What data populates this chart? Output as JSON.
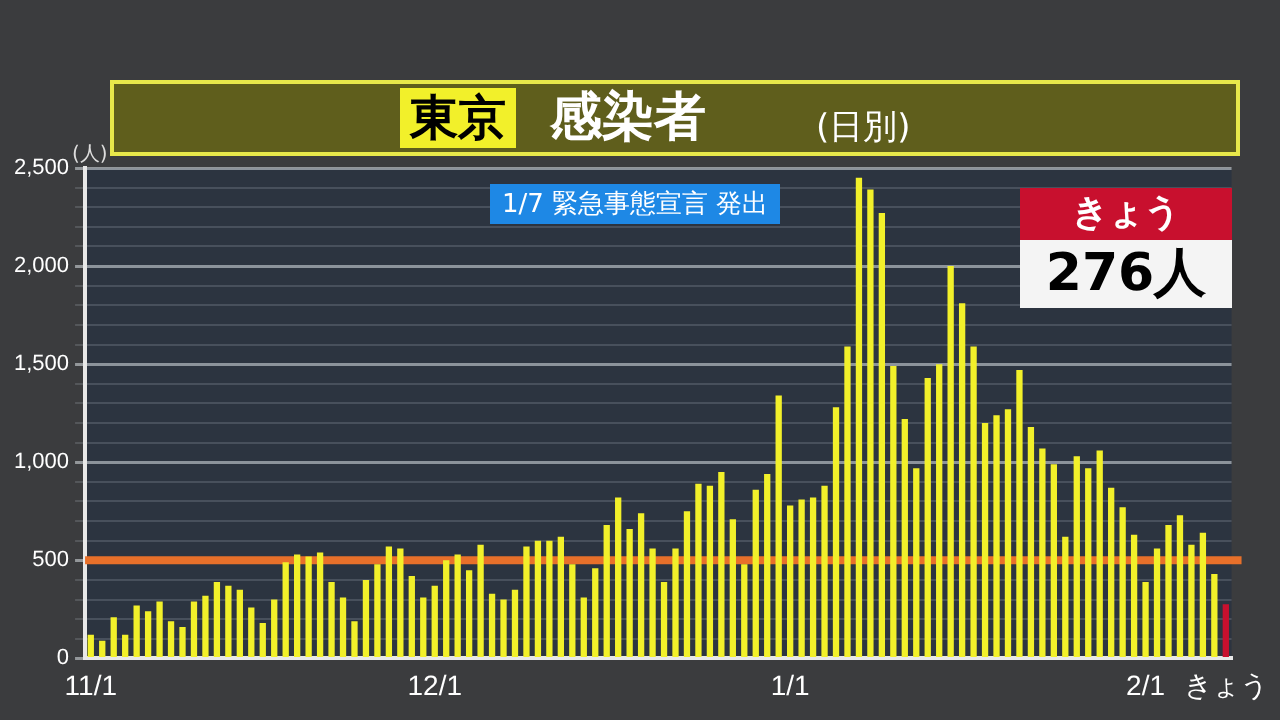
{
  "chart_data": {
    "type": "bar",
    "title": "東京",
    "subtitle": "感染者",
    "ylabel": "(人)",
    "annotations": [
      "1/7 緊急事態宣言 発出",
      "きょう",
      "276人",
      "(日別)"
    ],
    "categories": [
      "11/1",
      null,
      null,
      null,
      null,
      null,
      null,
      null,
      null,
      null,
      null,
      null,
      null,
      null,
      null,
      null,
      null,
      null,
      null,
      null,
      null,
      null,
      null,
      null,
      null,
      null,
      null,
      null,
      null,
      null,
      "12/1",
      null,
      null,
      null,
      null,
      null,
      null,
      null,
      null,
      null,
      null,
      null,
      null,
      null,
      null,
      null,
      null,
      null,
      null,
      null,
      null,
      null,
      null,
      null,
      null,
      null,
      null,
      null,
      null,
      null,
      null,
      "1/1",
      null,
      null,
      null,
      null,
      null,
      null,
      null,
      null,
      null,
      null,
      null,
      null,
      null,
      null,
      null,
      null,
      null,
      null,
      null,
      null,
      null,
      null,
      null,
      null,
      null,
      null,
      null,
      null,
      null,
      null,
      "2/1",
      null,
      null,
      null,
      null,
      null,
      null,
      "きょう"
    ],
    "values": [
      120,
      90,
      210,
      120,
      270,
      240,
      290,
      190,
      160,
      290,
      320,
      390,
      370,
      350,
      260,
      180,
      300,
      490,
      530,
      520,
      540,
      390,
      310,
      190,
      400,
      480,
      570,
      560,
      420,
      310,
      370,
      500,
      530,
      450,
      580,
      330,
      300,
      350,
      570,
      600,
      600,
      620,
      480,
      310,
      460,
      680,
      820,
      660,
      740,
      560,
      390,
      560,
      750,
      890,
      880,
      950,
      710,
      480,
      860,
      940,
      1340,
      780,
      810,
      820,
      880,
      1280,
      1590,
      2450,
      2390,
      2270,
      1490,
      1220,
      970,
      1430,
      1500,
      2000,
      1810,
      1590,
      1200,
      1240,
      1270,
      1470,
      1180,
      1070,
      990,
      620,
      1030,
      970,
      1060,
      870,
      770,
      630,
      390,
      560,
      680,
      730,
      580,
      640,
      430,
      276
    ],
    "colors": [
      "#f2f02a",
      "#f2f02a",
      "#f2f02a",
      "#f2f02a",
      "#f2f02a",
      "#f2f02a",
      "#f2f02a",
      "#f2f02a",
      "#f2f02a",
      "#f2f02a",
      "#f2f02a",
      "#f2f02a",
      "#f2f02a",
      "#f2f02a",
      "#f2f02a",
      "#f2f02a",
      "#f2f02a",
      "#f2f02a",
      "#f2f02a",
      "#f2f02a",
      "#f2f02a",
      "#f2f02a",
      "#f2f02a",
      "#f2f02a",
      "#f2f02a",
      "#f2f02a",
      "#f2f02a",
      "#f2f02a",
      "#f2f02a",
      "#f2f02a",
      "#f2f02a",
      "#f2f02a",
      "#f2f02a",
      "#f2f02a",
      "#f2f02a",
      "#f2f02a",
      "#f2f02a",
      "#f2f02a",
      "#f2f02a",
      "#f2f02a",
      "#f2f02a",
      "#f2f02a",
      "#f2f02a",
      "#f2f02a",
      "#f2f02a",
      "#f2f02a",
      "#f2f02a",
      "#f2f02a",
      "#f2f02a",
      "#f2f02a",
      "#f2f02a",
      "#f2f02a",
      "#f2f02a",
      "#f2f02a",
      "#f2f02a",
      "#f2f02a",
      "#f2f02a",
      "#f2f02a",
      "#f2f02a",
      "#f2f02a",
      "#f2f02a",
      "#f2f02a",
      "#f2f02a",
      "#f2f02a",
      "#f2f02a",
      "#f2f02a",
      "#f2f02a",
      "#f2f02a",
      "#f2f02a",
      "#f2f02a",
      "#f2f02a",
      "#f2f02a",
      "#f2f02a",
      "#f2f02a",
      "#f2f02a",
      "#f2f02a",
      "#f2f02a",
      "#f2f02a",
      "#f2f02a",
      "#f2f02a",
      "#f2f02a",
      "#f2f02a",
      "#f2f02a",
      "#f2f02a",
      "#f2f02a",
      "#f2f02a",
      "#f2f02a",
      "#f2f02a",
      "#f2f02a",
      "#f2f02a",
      "#f2f02a",
      "#f2f02a",
      "#f2f02a",
      "#f2f02a",
      "#f2f02a",
      "#f2f02a",
      "#f2f02a",
      "#f2f02a",
      "#f2f02a",
      "#c8102e"
    ],
    "ylim": [
      0,
      2500
    ],
    "yticks": [
      0,
      {
        "value": 100,
        "label": null
      },
      {
        "value": 200,
        "label": null
      },
      {
        "value": 300,
        "label": null
      },
      {
        "value": 400,
        "label": null
      },
      500,
      {
        "value": 600,
        "label": null
      },
      {
        "value": 700,
        "label": null
      },
      {
        "value": 800,
        "label": null
      },
      {
        "value": 900,
        "label": null
      },
      {
        "value": 1000,
        "label": "1,000"
      },
      {
        "value": 1100,
        "label": null
      },
      {
        "value": 1200,
        "label": null
      },
      {
        "value": 1300,
        "label": null
      },
      {
        "value": 1400,
        "label": null
      },
      {
        "value": 1500,
        "label": "1,500"
      },
      {
        "value": 1600,
        "label": null
      },
      {
        "value": 1700,
        "label": null
      },
      {
        "value": 1800,
        "label": null
      },
      {
        "value": 1900,
        "label": null
      },
      {
        "value": 2000,
        "label": "2,000"
      },
      {
        "value": 2100,
        "label": null
      },
      {
        "value": 2200,
        "label": null
      },
      {
        "value": 2300,
        "label": null
      },
      {
        "value": 2400,
        "label": null
      },
      {
        "value": 2500,
        "label": "2,500"
      }
    ],
    "grid": "y",
    "legend": false,
    "ref_lines": [
      {
        "axis": "y",
        "value": 500,
        "color": "#e8702a"
      }
    ]
  }
}
